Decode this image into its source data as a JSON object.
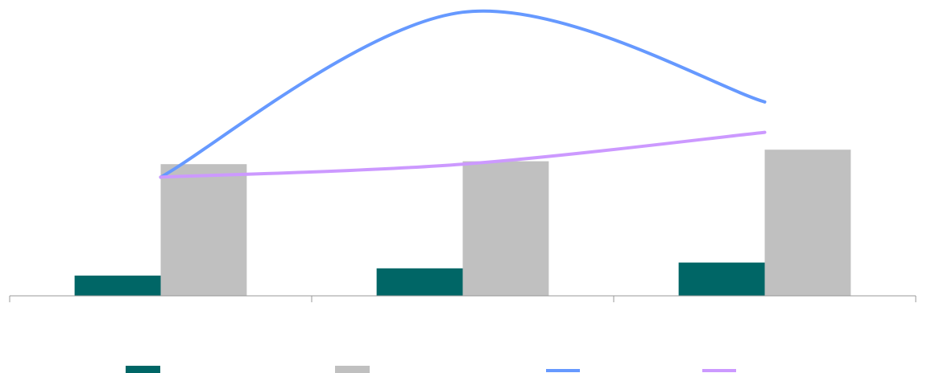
{
  "chart_data": {
    "type": "bar",
    "title": "",
    "xlabel": "",
    "ylabel": "",
    "categories": [
      "",
      "",
      ""
    ],
    "ylim": [
      0,
      100
    ],
    "grid": false,
    "legend": "bottom",
    "series": [
      {
        "type": "bar",
        "color": "#006666",
        "values": [
          7,
          9.5,
          11.5
        ]
      },
      {
        "type": "bar",
        "color": "#C0C0C0",
        "values": [
          45.5,
          46.5,
          50.5
        ]
      },
      {
        "type": "line",
        "color": "#6699FF",
        "values": [
          41,
          98,
          67
        ]
      },
      {
        "type": "line",
        "color": "#CC99FF",
        "values": [
          41,
          45.5,
          56.5
        ]
      }
    ]
  }
}
